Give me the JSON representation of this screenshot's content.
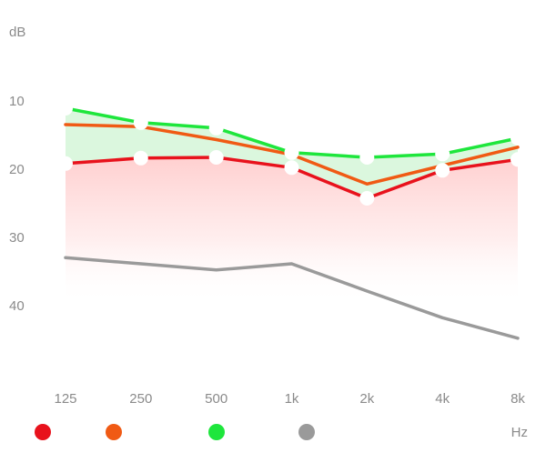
{
  "chart_data": {
    "type": "line",
    "ylabel": "dB",
    "xunit": "Hz",
    "y_ticks": [
      "10",
      "20",
      "30",
      "40"
    ],
    "ylim": [
      0,
      50
    ],
    "y_inverted": true,
    "categories": [
      "125",
      "250",
      "500",
      "1k",
      "2k",
      "4k",
      "8k"
    ],
    "series": [
      {
        "color": "#e8121c",
        "values": [
          19.3,
          18.5,
          18.4,
          19.9,
          24.4,
          20.3,
          18.7
        ],
        "markers": true,
        "band": "red"
      },
      {
        "color": "#f05a14",
        "values": [
          13.6,
          13.9,
          15.8,
          18.0,
          22.3,
          19.6,
          16.9
        ],
        "markers": false,
        "band": null
      },
      {
        "color": "#1ee63c",
        "values": [
          11.2,
          13.3,
          14.1,
          17.7,
          18.4,
          17.9,
          15.6
        ],
        "markers": true,
        "band": "green"
      },
      {
        "color": "#9a9a9a",
        "values": [
          33.1,
          34.0,
          34.9,
          34.0,
          38.0,
          41.9,
          44.9
        ],
        "markers": false,
        "band": null
      }
    ],
    "grid": true,
    "legend": {
      "position": "bottom-left",
      "marker": "dot"
    }
  }
}
